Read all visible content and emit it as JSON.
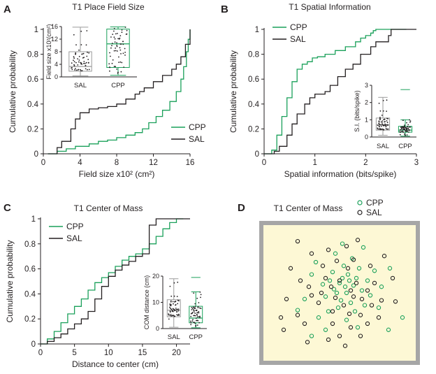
{
  "colors": {
    "cpp": "#1aa05a",
    "sal": "#231f20",
    "box_sal": "#9a9a9a",
    "arena_fill": "#fdf8d5",
    "arena_border": "#a6a6a6"
  },
  "chart_data": [
    {
      "panel": "A",
      "type": "line",
      "title": "T1 Place Field Size",
      "xlabel": "Field size x10² (cm²)",
      "ylabel": "Cumulative probability",
      "xlim": [
        0,
        16
      ],
      "ylim": [
        0,
        1
      ],
      "xticks": [
        "0",
        "4",
        "8",
        "12",
        "16"
      ],
      "yticks": [
        "0",
        "0.2",
        "0.4",
        "0.6",
        "0.8",
        "1"
      ],
      "legend": [
        "CPP",
        "SAL"
      ],
      "legend_position": "bottom-right",
      "series": [
        {
          "name": "CPP",
          "x": [
            0.5,
            1.5,
            2.5,
            3.5,
            5,
            6,
            7,
            8,
            9,
            10,
            10.8,
            11.5,
            12.3,
            13,
            13.8,
            14.5,
            15,
            15.3,
            15.6,
            15.8,
            16
          ],
          "y": [
            0,
            0.02,
            0.04,
            0.06,
            0.08,
            0.1,
            0.11,
            0.13,
            0.15,
            0.17,
            0.2,
            0.25,
            0.3,
            0.35,
            0.42,
            0.5,
            0.6,
            0.7,
            0.82,
            0.92,
            1.0
          ]
        },
        {
          "name": "SAL",
          "x": [
            0.5,
            1.5,
            2,
            3,
            3.5,
            4,
            5,
            6,
            7,
            8,
            9,
            10,
            10.5,
            11,
            12,
            13,
            14,
            14.5,
            15,
            15.5,
            16
          ],
          "y": [
            0,
            0.05,
            0.1,
            0.2,
            0.28,
            0.33,
            0.36,
            0.37,
            0.38,
            0.4,
            0.44,
            0.48,
            0.5,
            0.53,
            0.58,
            0.63,
            0.68,
            0.72,
            0.78,
            0.88,
            1.0
          ]
        }
      ],
      "inset": {
        "type": "box",
        "ylabel": "Field size x10²(cm²)",
        "ylim": [
          0,
          16
        ],
        "yticks": [
          "0",
          "4",
          "8",
          "12",
          "16"
        ],
        "categories": [
          "SAL",
          "CPP"
        ],
        "boxes": [
          {
            "name": "SAL",
            "whisker_low": 0.3,
            "q1": 1.8,
            "median": 3.3,
            "q3": 8,
            "whisker_high": 15.8
          },
          {
            "name": "CPP",
            "whisker_low": 0.5,
            "q1": 3,
            "median": 10.5,
            "q3": 15.2,
            "whisker_high": 15.9
          }
        ]
      }
    },
    {
      "panel": "B",
      "type": "line",
      "title": "T1 Spatial Information",
      "xlabel": "Spatial information (bits/spike)",
      "ylabel": "Cumulative probability",
      "xlim": [
        0,
        3
      ],
      "ylim": [
        0,
        1
      ],
      "xticks": [
        "0",
        "1",
        "2",
        "3"
      ],
      "yticks": [
        "0",
        "0.2",
        "0.4",
        "0.6",
        "0.8",
        "1"
      ],
      "legend": [
        "CPP",
        "SAL"
      ],
      "legend_position": "top-left",
      "series": [
        {
          "name": "CPP",
          "x": [
            0,
            0.15,
            0.25,
            0.35,
            0.45,
            0.55,
            0.65,
            0.75,
            0.85,
            0.95,
            1.05,
            1.2,
            1.4,
            1.6,
            1.8,
            1.9,
            2.0,
            2.1,
            2.15,
            2.2,
            2.8
          ],
          "y": [
            0,
            0.03,
            0.15,
            0.3,
            0.45,
            0.58,
            0.68,
            0.72,
            0.74,
            0.77,
            0.78,
            0.8,
            0.83,
            0.86,
            0.9,
            0.93,
            0.95,
            0.97,
            0.99,
            1.0,
            1.0
          ]
        },
        {
          "name": "SAL",
          "x": [
            0,
            0.2,
            0.3,
            0.45,
            0.55,
            0.65,
            0.8,
            0.9,
            1.0,
            1.2,
            1.3,
            1.45,
            1.6,
            1.75,
            1.9,
            2.1,
            2.2,
            2.45,
            2.5,
            2.8,
            3.0
          ],
          "y": [
            0,
            0.02,
            0.06,
            0.15,
            0.24,
            0.32,
            0.4,
            0.45,
            0.48,
            0.5,
            0.55,
            0.62,
            0.68,
            0.72,
            0.8,
            0.86,
            0.9,
            0.95,
            1.0,
            1.0,
            1.0
          ]
        }
      ],
      "inset": {
        "type": "box",
        "ylabel": "S.I. (bits/spike)",
        "ylim": [
          0,
          3
        ],
        "yticks": [
          "0",
          "1",
          "2",
          "3"
        ],
        "categories": [
          "SAL",
          "CPP"
        ],
        "boxes": [
          {
            "name": "SAL",
            "whisker_low": 0.1,
            "q1": 0.4,
            "median": 0.7,
            "q3": 1.1,
            "whisker_high": 2.3
          },
          {
            "name": "CPP",
            "whisker_low": 0.05,
            "q1": 0.28,
            "median": 0.4,
            "q3": 0.62,
            "whisker_high": 1.0,
            "outliers": [
              2.75
            ]
          }
        ]
      }
    },
    {
      "panel": "C",
      "type": "line",
      "title": "T1 Center of Mass",
      "xlabel": "Distance to center (cm)",
      "ylabel": "Cumulative probability",
      "xlim": [
        0,
        22
      ],
      "ylim": [
        0,
        1
      ],
      "xticks": [
        "0",
        "5",
        "10",
        "15",
        "20"
      ],
      "yticks": [
        "0",
        "0.2",
        "0.4",
        "0.6",
        "0.8",
        "1"
      ],
      "legend": [
        "CPP",
        "SAL"
      ],
      "legend_position": "top-left",
      "series": [
        {
          "name": "CPP",
          "x": [
            0,
            1,
            2,
            3,
            4,
            5,
            6,
            7,
            8,
            9,
            10,
            11,
            12,
            13,
            14,
            15,
            16,
            17,
            18,
            19,
            20,
            21
          ],
          "y": [
            0,
            0.04,
            0.1,
            0.17,
            0.24,
            0.3,
            0.36,
            0.43,
            0.49,
            0.53,
            0.57,
            0.62,
            0.67,
            0.7,
            0.72,
            0.76,
            0.8,
            0.86,
            0.92,
            0.97,
            1.0,
            1.0
          ]
        },
        {
          "name": "SAL",
          "x": [
            0,
            1,
            2,
            3,
            4,
            5,
            6,
            7,
            8,
            9,
            10,
            11,
            12,
            13,
            14,
            15,
            16,
            17,
            18,
            19,
            20,
            22
          ],
          "y": [
            0,
            0.02,
            0.05,
            0.08,
            0.12,
            0.16,
            0.2,
            0.26,
            0.36,
            0.46,
            0.54,
            0.59,
            0.63,
            0.66,
            0.7,
            0.72,
            0.95,
            1.0,
            1.0,
            1.0,
            1.0,
            1.0
          ]
        }
      ],
      "inset": {
        "type": "box",
        "ylabel": "COM distance (cm)",
        "ylim": [
          0,
          20
        ],
        "yticks": [
          "0",
          "10",
          "20"
        ],
        "categories": [
          "SAL",
          "CPP"
        ],
        "boxes": [
          {
            "name": "SAL",
            "whisker_low": 0.5,
            "q1": 4.5,
            "median": 7,
            "q3": 11,
            "whisker_high": 19
          },
          {
            "name": "CPP",
            "whisker_low": 0.3,
            "q1": 2.2,
            "median": 4,
            "q3": 8.5,
            "whisker_high": 14,
            "outliers": [
              19.5
            ]
          }
        ]
      }
    },
    {
      "panel": "D",
      "type": "scatter",
      "title": "T1 Center of Mass",
      "legend": [
        "CPP",
        "SAL"
      ],
      "legend_position": "top-right",
      "xlim": [
        0,
        1
      ],
      "ylim": [
        0,
        1
      ],
      "series": [
        {
          "name": "CPP",
          "points": [
            [
              0.52,
              0.62
            ],
            [
              0.54,
              0.55
            ],
            [
              0.5,
              0.58
            ],
            [
              0.46,
              0.53
            ],
            [
              0.57,
              0.6
            ],
            [
              0.55,
              0.5
            ],
            [
              0.6,
              0.56
            ],
            [
              0.43,
              0.6
            ],
            [
              0.48,
              0.5
            ],
            [
              0.56,
              0.65
            ],
            [
              0.62,
              0.62
            ],
            [
              0.38,
              0.57
            ],
            [
              0.66,
              0.52
            ],
            [
              0.51,
              0.44
            ],
            [
              0.4,
              0.47
            ],
            [
              0.58,
              0.42
            ],
            [
              0.64,
              0.7
            ],
            [
              0.7,
              0.6
            ],
            [
              0.53,
              0.72
            ],
            [
              0.45,
              0.67
            ],
            [
              0.3,
              0.65
            ],
            [
              0.72,
              0.48
            ],
            [
              0.75,
              0.68
            ],
            [
              0.49,
              0.38
            ],
            [
              0.61,
              0.35
            ],
            [
              0.42,
              0.35
            ],
            [
              0.35,
              0.3
            ],
            [
              0.55,
              0.28
            ],
            [
              0.68,
              0.4
            ],
            [
              0.8,
              0.55
            ],
            [
              0.86,
              0.7
            ],
            [
              0.78,
              0.38
            ],
            [
              0.25,
              0.45
            ],
            [
              0.2,
              0.36
            ],
            [
              0.33,
              0.75
            ],
            [
              0.59,
              0.78
            ],
            [
              0.67,
              0.87
            ],
            [
              0.47,
              0.82
            ],
            [
              0.63,
              0.22
            ],
            [
              0.85,
              0.2
            ],
            [
              0.95,
              0.3
            ],
            [
              0.4,
              0.2
            ],
            [
              0.3,
              0.15
            ],
            [
              0.52,
              0.9
            ]
          ]
        },
        {
          "name": "SAL",
          "points": [
            [
              0.5,
              0.6
            ],
            [
              0.44,
              0.55
            ],
            [
              0.58,
              0.52
            ],
            [
              0.47,
              0.46
            ],
            [
              0.53,
              0.4
            ],
            [
              0.6,
              0.47
            ],
            [
              0.37,
              0.5
            ],
            [
              0.62,
              0.58
            ],
            [
              0.4,
              0.62
            ],
            [
              0.56,
              0.7
            ],
            [
              0.66,
              0.45
            ],
            [
              0.35,
              0.42
            ],
            [
              0.7,
              0.52
            ],
            [
              0.45,
              0.35
            ],
            [
              0.57,
              0.33
            ],
            [
              0.65,
              0.32
            ],
            [
              0.73,
              0.4
            ],
            [
              0.28,
              0.55
            ],
            [
              0.3,
              0.48
            ],
            [
              0.22,
              0.6
            ],
            [
              0.75,
              0.58
            ],
            [
              0.8,
              0.44
            ],
            [
              0.38,
              0.72
            ],
            [
              0.6,
              0.77
            ],
            [
              0.48,
              0.76
            ],
            [
              0.72,
              0.72
            ],
            [
              0.3,
              0.82
            ],
            [
              0.42,
              0.85
            ],
            [
              0.55,
              0.88
            ],
            [
              0.63,
              0.93
            ],
            [
              0.2,
              0.92
            ],
            [
              0.82,
              0.8
            ],
            [
              0.15,
              0.7
            ],
            [
              0.12,
              0.45
            ],
            [
              0.2,
              0.32
            ],
            [
              0.25,
              0.25
            ],
            [
              0.45,
              0.25
            ],
            [
              0.58,
              0.22
            ],
            [
              0.7,
              0.25
            ],
            [
              0.78,
              0.3
            ],
            [
              0.9,
              0.43
            ],
            [
              0.08,
              0.3
            ],
            [
              0.1,
              0.2
            ],
            [
              0.27,
              0.1
            ],
            [
              0.42,
              0.12
            ],
            [
              0.5,
              0.15
            ],
            [
              0.54,
              0.07
            ],
            [
              0.65,
              0.15
            ],
            [
              0.88,
              0.62
            ]
          ]
        }
      ]
    }
  ]
}
